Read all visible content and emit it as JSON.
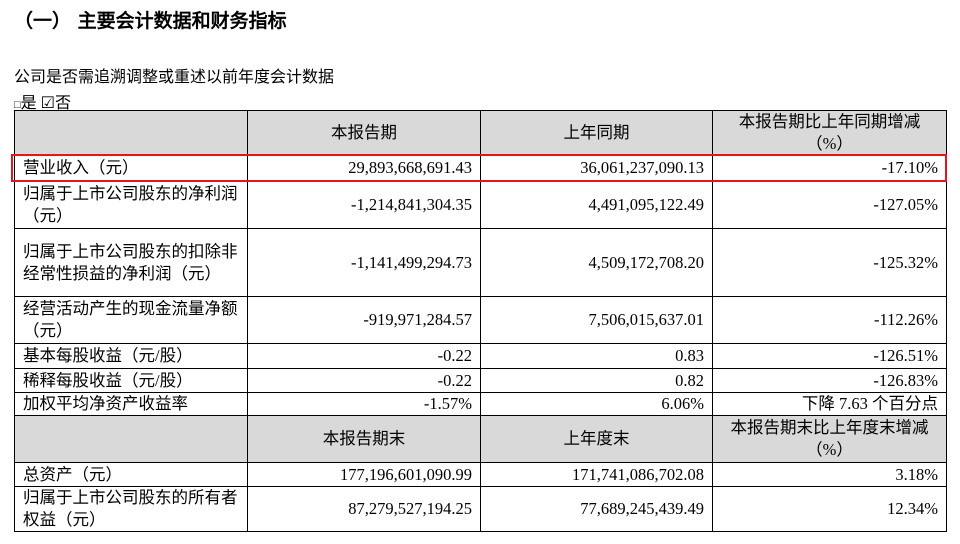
{
  "header": {
    "title": "（一） 主要会计数据和财务指标",
    "question": "公司是否需追溯调整或重述以前年度会计数据",
    "option_yes": "是",
    "option_no": "否"
  },
  "table": {
    "header1": [
      "本报告期",
      "上年同期",
      "本报告期比上年同期增减（%）"
    ],
    "rows": [
      [
        "营业收入（元）",
        "29,893,668,691.43",
        "36,061,237,090.13",
        "-17.10%"
      ],
      [
        "归属于上市公司股东的净利润（元）",
        "-1,214,841,304.35",
        "4,491,095,122.49",
        "-127.05%"
      ],
      [
        "归属于上市公司股东的扣除非经常性损益的净利润（元）",
        "-1,141,499,294.73",
        "4,509,172,708.20",
        "-125.32%"
      ],
      [
        "经营活动产生的现金流量净额（元）",
        "-919,971,284.57",
        "7,506,015,637.01",
        "-112.26%"
      ],
      [
        "基本每股收益（元/股）",
        "-0.22",
        "0.83",
        "-126.51%"
      ],
      [
        "稀释每股收益（元/股）",
        "-0.22",
        "0.82",
        "-126.83%"
      ],
      [
        "加权平均净资产收益率",
        "-1.57%",
        "6.06%",
        "下降 7.63 个百分点"
      ]
    ],
    "header2": [
      "本报告期末",
      "上年度末",
      "本报告期末比上年度末增减（%）"
    ],
    "rows2": [
      [
        "总资产（元）",
        "177,196,601,090.99",
        "171,741,086,702.08",
        "3.18%"
      ],
      [
        "归属于上市公司股东的所有者权益（元）",
        "87,279,527,194.25",
        "77,689,245,439.49",
        "12.34%"
      ]
    ]
  }
}
